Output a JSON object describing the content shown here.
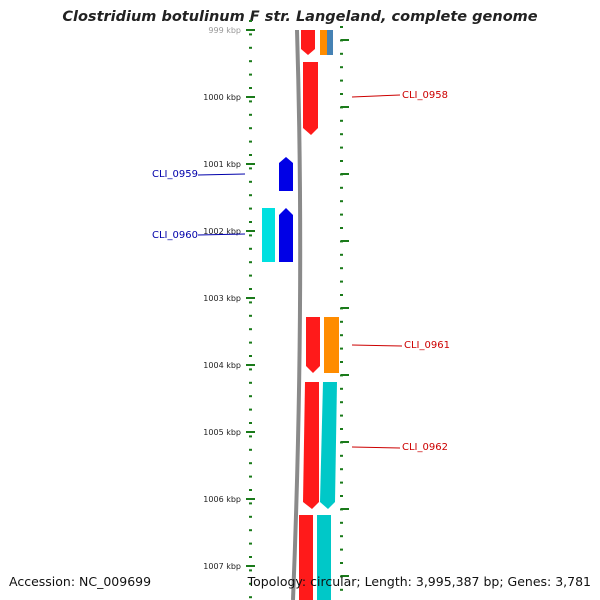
{
  "title": "Clostridium botulinum F str. Langeland, complete genome",
  "footer": {
    "accession": "Accession: NC_009699",
    "summary": "Topology: circular; Length: 3,995,387 bp; Genes: 3,781"
  },
  "ruler": {
    "ticks": [
      "999 kbp",
      "1000 kbp",
      "1001 kbp",
      "1002 kbp",
      "1003 kbp",
      "1004 kbp",
      "1005 kbp",
      "1006 kbp",
      "1007 kbp"
    ]
  },
  "colors": {
    "tick": "#1a7a1a",
    "backbone": "#8a8a8a",
    "forward_cds": "#ff0000",
    "forward_gene": "#00c8c8",
    "reverse_cds": "#0000e6",
    "reverse_gene": "#00e0e0",
    "orange": "#ff8c00",
    "blue_steel": "#4682b4",
    "label_forward": "#cc0000",
    "label_reverse": "#0000aa"
  },
  "labels": [
    {
      "name": "CLI_0958",
      "strand": "forward"
    },
    {
      "name": "CLI_0959",
      "strand": "reverse"
    },
    {
      "name": "CLI_0960",
      "strand": "reverse"
    },
    {
      "name": "CLI_0961",
      "strand": "forward"
    },
    {
      "name": "CLI_0962",
      "strand": "forward"
    }
  ]
}
